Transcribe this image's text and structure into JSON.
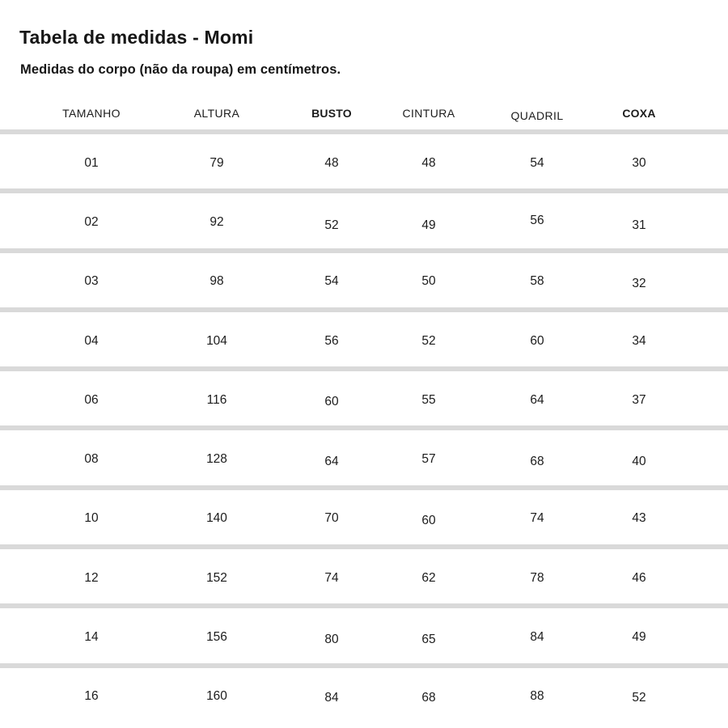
{
  "page": {
    "title": "Tabela de medidas - Momi",
    "subtitle": "Medidas do corpo (não da roupa) em centímetros."
  },
  "table": {
    "columns": [
      {
        "label": "TAMANHO",
        "bold": false
      },
      {
        "label": "ALTURA",
        "bold": false
      },
      {
        "label": "BUSTO",
        "bold": true
      },
      {
        "label": "CINTURA",
        "bold": false
      },
      {
        "label": "QUADRIL",
        "bold": false
      },
      {
        "label": "COXA",
        "bold": true
      }
    ],
    "rows": [
      [
        "01",
        "79",
        "48",
        "48",
        "54",
        "30"
      ],
      [
        "02",
        "92",
        "52",
        "49",
        "56",
        "31"
      ],
      [
        "03",
        "98",
        "54",
        "50",
        "58",
        "32"
      ],
      [
        "04",
        "104",
        "56",
        "52",
        "60",
        "34"
      ],
      [
        "06",
        "116",
        "60",
        "55",
        "64",
        "37"
      ],
      [
        "08",
        "128",
        "64",
        "57",
        "68",
        "40"
      ],
      [
        "10",
        "140",
        "70",
        "60",
        "74",
        "43"
      ],
      [
        "12",
        "152",
        "74",
        "62",
        "78",
        "46"
      ],
      [
        "14",
        "156",
        "80",
        "65",
        "84",
        "49"
      ],
      [
        "16",
        "160",
        "84",
        "68",
        "88",
        "52"
      ]
    ]
  },
  "colors": {
    "background": "#ffffff",
    "text": "#1a1a1a",
    "divider": "#d9d9d9"
  },
  "units": "cm"
}
